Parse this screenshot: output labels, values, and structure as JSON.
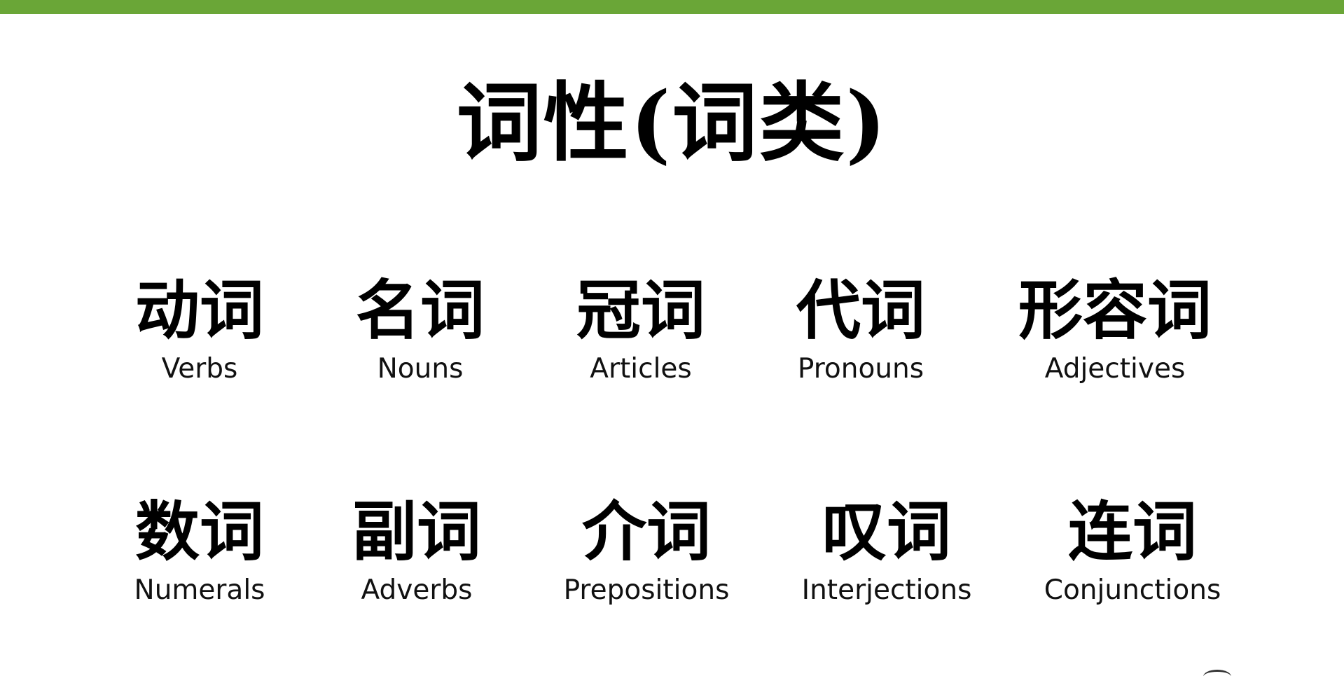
{
  "theme": {
    "accent": "#6aa637",
    "text": "#000000"
  },
  "slide": {
    "title": "词性(词类)",
    "rows": [
      [
        {
          "cn": "动词",
          "en": "Verbs"
        },
        {
          "cn": "名词",
          "en": "Nouns"
        },
        {
          "cn": "冠词",
          "en": "Articles"
        },
        {
          "cn": "代词",
          "en": "Pronouns"
        },
        {
          "cn": "形容词",
          "en": "Adjectives"
        }
      ],
      [
        {
          "cn": "数词",
          "en": "Numerals"
        },
        {
          "cn": "副词",
          "en": "Adverbs"
        },
        {
          "cn": "介词",
          "en": "Prepositions"
        },
        {
          "cn": "叹词",
          "en": "Interjections"
        },
        {
          "cn": "连词",
          "en": "Conjunctions"
        }
      ]
    ]
  }
}
